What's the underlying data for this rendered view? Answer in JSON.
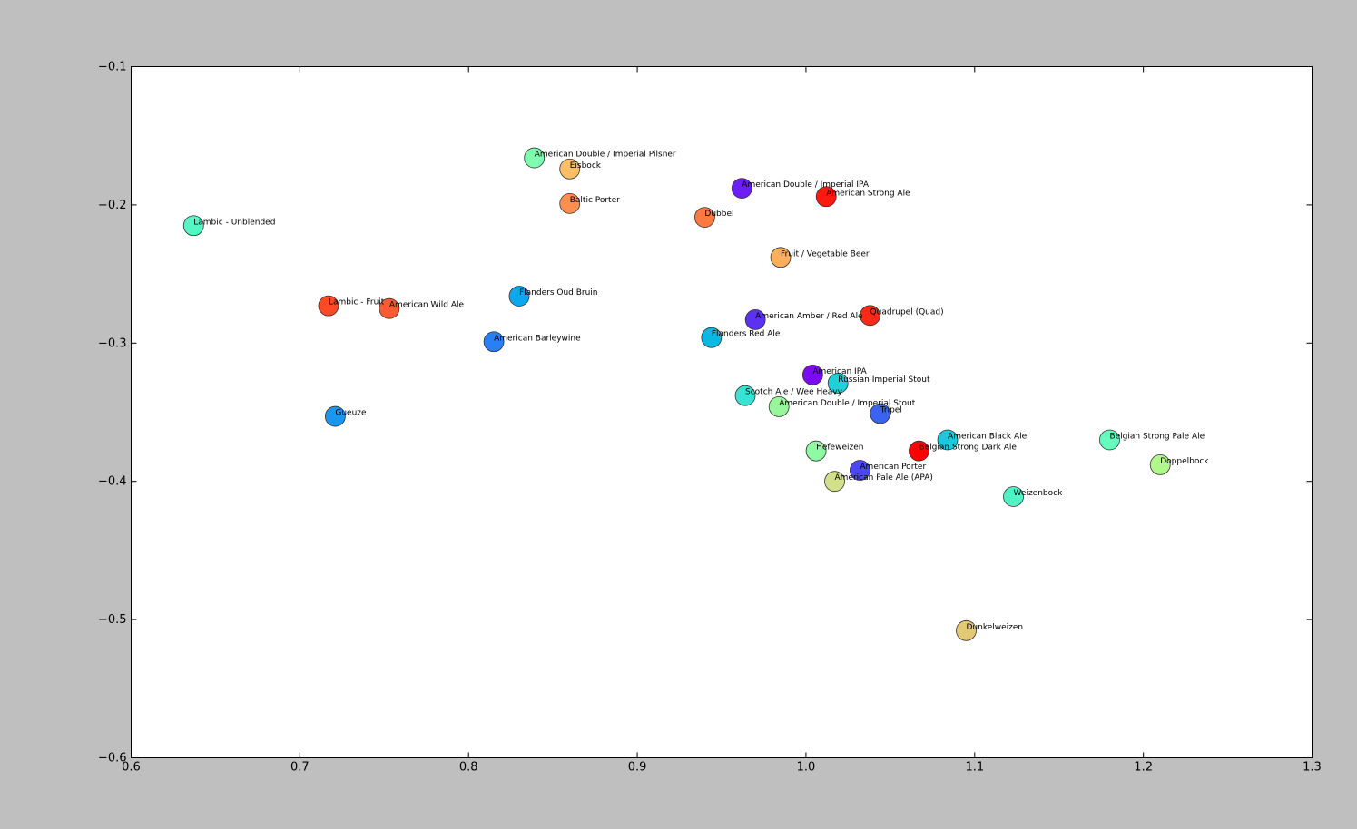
{
  "chart_data": {
    "type": "scatter",
    "title": "",
    "xlabel": "",
    "ylabel": "",
    "xlim": [
      0.6,
      1.3
    ],
    "ylim": [
      -0.6,
      -0.1
    ],
    "x_ticks": [
      "0.6",
      "0.7",
      "0.8",
      "0.9",
      "1.0",
      "1.1",
      "1.2",
      "1.3"
    ],
    "y_ticks": [
      "−0.1",
      "−0.2",
      "−0.3",
      "−0.4",
      "−0.5",
      "−0.6"
    ],
    "grid": false,
    "points": [
      {
        "label": "American Double / Imperial Pilsner",
        "x": 0.839,
        "y": -0.166,
        "color": "#7efcb0"
      },
      {
        "label": "Eisbock",
        "x": 0.86,
        "y": -0.174,
        "color": "#fcbe66"
      },
      {
        "label": "Baltic Porter",
        "x": 0.86,
        "y": -0.199,
        "color": "#ff8f4f"
      },
      {
        "label": "American Double / Imperial IPA",
        "x": 0.962,
        "y": -0.188,
        "color": "#6c1ff5"
      },
      {
        "label": "American Strong Ale",
        "x": 1.012,
        "y": -0.194,
        "color": "#ff1a10"
      },
      {
        "label": "Dubbel",
        "x": 0.94,
        "y": -0.209,
        "color": "#ff7a42"
      },
      {
        "label": "Lambic - Unblended",
        "x": 0.637,
        "y": -0.215,
        "color": "#52f7c2"
      },
      {
        "label": "Fruit / Vegetable Beer",
        "x": 0.985,
        "y": -0.238,
        "color": "#feaf5d"
      },
      {
        "label": "Flanders Oud Bruin",
        "x": 0.83,
        "y": -0.266,
        "color": "#0ca8ee"
      },
      {
        "label": "Lambic - Fruit",
        "x": 0.717,
        "y": -0.273,
        "color": "#ff4a27"
      },
      {
        "label": "American Wild Ale",
        "x": 0.753,
        "y": -0.275,
        "color": "#ff5b32"
      },
      {
        "label": "Quadrupel (Quad)",
        "x": 1.038,
        "y": -0.28,
        "color": "#ff2a17"
      },
      {
        "label": "American Amber / Red Ale",
        "x": 0.97,
        "y": -0.283,
        "color": "#5b31f4"
      },
      {
        "label": "Flanders Red Ale",
        "x": 0.944,
        "y": -0.296,
        "color": "#0ab8e4"
      },
      {
        "label": "American Barleywine",
        "x": 0.815,
        "y": -0.299,
        "color": "#2a7ff5"
      },
      {
        "label": "American IPA",
        "x": 1.004,
        "y": -0.323,
        "color": "#7b0af5"
      },
      {
        "label": "Russian Imperial Stout",
        "x": 1.019,
        "y": -0.329,
        "color": "#1fd0d8"
      },
      {
        "label": "Scotch Ale / Wee Heavy",
        "x": 0.964,
        "y": -0.338,
        "color": "#36e3d4"
      },
      {
        "label": "American Double / Imperial Stout",
        "x": 0.984,
        "y": -0.346,
        "color": "#98f79a"
      },
      {
        "label": "Tripel",
        "x": 1.044,
        "y": -0.351,
        "color": "#3a63ef"
      },
      {
        "label": "Gueuze",
        "x": 0.721,
        "y": -0.353,
        "color": "#1b96ef"
      },
      {
        "label": "Belgian Strong Pale Ale",
        "x": 1.18,
        "y": -0.37,
        "color": "#66fcbe"
      },
      {
        "label": "American Black Ale",
        "x": 1.084,
        "y": -0.37,
        "color": "#1ec8dc"
      },
      {
        "label": "Hefeweizen",
        "x": 1.006,
        "y": -0.378,
        "color": "#8ffaa1"
      },
      {
        "label": "Belgian Strong Dark Ale",
        "x": 1.067,
        "y": -0.378,
        "color": "#ff0000"
      },
      {
        "label": "Doppelbock",
        "x": 1.21,
        "y": -0.388,
        "color": "#b2f78c"
      },
      {
        "label": "American Porter",
        "x": 1.032,
        "y": -0.392,
        "color": "#4b47f2"
      },
      {
        "label": "American Pale Ale (APA)",
        "x": 1.017,
        "y": -0.4,
        "color": "#d2e08a"
      },
      {
        "label": "Weizenbock",
        "x": 1.123,
        "y": -0.411,
        "color": "#4ef4c6"
      },
      {
        "label": "Dunkelweizen",
        "x": 1.095,
        "y": -0.508,
        "color": "#e3c877"
      }
    ]
  }
}
